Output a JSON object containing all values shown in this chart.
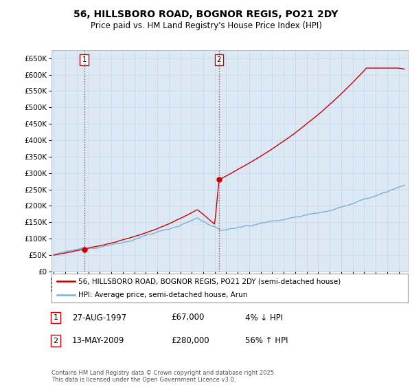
{
  "title": "56, HILLSBORO ROAD, BOGNOR REGIS, PO21 2DY",
  "subtitle": "Price paid vs. HM Land Registry's House Price Index (HPI)",
  "legend_line1": "56, HILLSBORO ROAD, BOGNOR REGIS, PO21 2DY (semi-detached house)",
  "legend_line2": "HPI: Average price, semi-detached house, Arun",
  "property_color": "#cc0000",
  "hpi_color": "#7ab0d4",
  "marker_color": "#cc0000",
  "sale1_label": "1",
  "sale1_date": "27-AUG-1997",
  "sale1_price": "£67,000",
  "sale1_hpi": "4% ↓ HPI",
  "sale2_label": "2",
  "sale2_date": "13-MAY-2009",
  "sale2_price": "£280,000",
  "sale2_hpi": "56% ↑ HPI",
  "footer": "Contains HM Land Registry data © Crown copyright and database right 2025.\nThis data is licensed under the Open Government Licence v3.0.",
  "ylim_min": 0,
  "ylim_max": 675000,
  "yticks": [
    0,
    50000,
    100000,
    150000,
    200000,
    250000,
    300000,
    350000,
    400000,
    450000,
    500000,
    550000,
    600000,
    650000
  ],
  "plot_bg_color": "#dce9f5",
  "background_color": "#ffffff",
  "grid_color": "#c5d8ea",
  "sale1_x": 1997.65,
  "sale1_y": 67000,
  "sale2_x": 2009.37,
  "sale2_y": 280000,
  "xmin": 1994.8,
  "xmax": 2025.8
}
